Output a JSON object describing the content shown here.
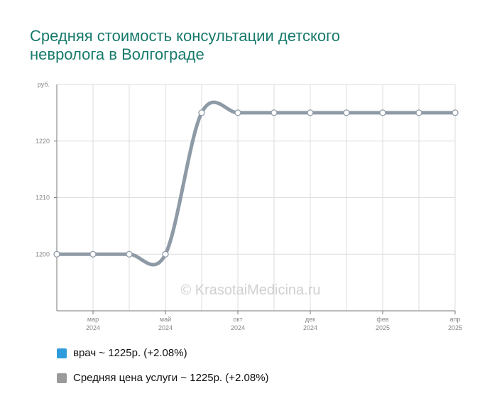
{
  "title": {
    "line1": "Средняя стоимость консультации детского",
    "line2": "невролога в Волгограде"
  },
  "watermark": "© KrasotaiMedicina.ru",
  "chart_data": {
    "type": "line",
    "y_unit": "руб.",
    "ylim": [
      1190,
      1230
    ],
    "y_ticks": [
      1200,
      1210,
      1220
    ],
    "x_tick_labels": [
      {
        "month": "мар",
        "year": "2024"
      },
      {
        "month": "май",
        "year": "2024"
      },
      {
        "month": "окт",
        "year": "2024"
      },
      {
        "month": "дек",
        "year": "2024"
      },
      {
        "month": "фев",
        "year": "2025"
      },
      {
        "month": "апр",
        "year": "2025"
      }
    ],
    "grid": true,
    "legend_position": "bottom-left",
    "series": [
      {
        "name": "врач ~ 1225р. (+2.08%)",
        "color": "#2d9bdc",
        "values": [
          1200,
          1200,
          1200,
          1200,
          1225,
          1225,
          1225,
          1225,
          1225,
          1225,
          1225,
          1225
        ]
      },
      {
        "name": "Средняя цена услуги ~ 1225р. (+2.08%)",
        "color": "#8e9aa6",
        "values": [
          1200,
          1200,
          1200,
          1200,
          1225,
          1225,
          1225,
          1225,
          1225,
          1225,
          1225,
          1225
        ]
      }
    ]
  },
  "legend": [
    {
      "label": "врач ~ 1225р. (+2.08%)",
      "color": "#2d9bdc"
    },
    {
      "label": "Средняя цена услуги ~ 1225р. (+2.08%)",
      "color": "#9a9a9a"
    }
  ]
}
